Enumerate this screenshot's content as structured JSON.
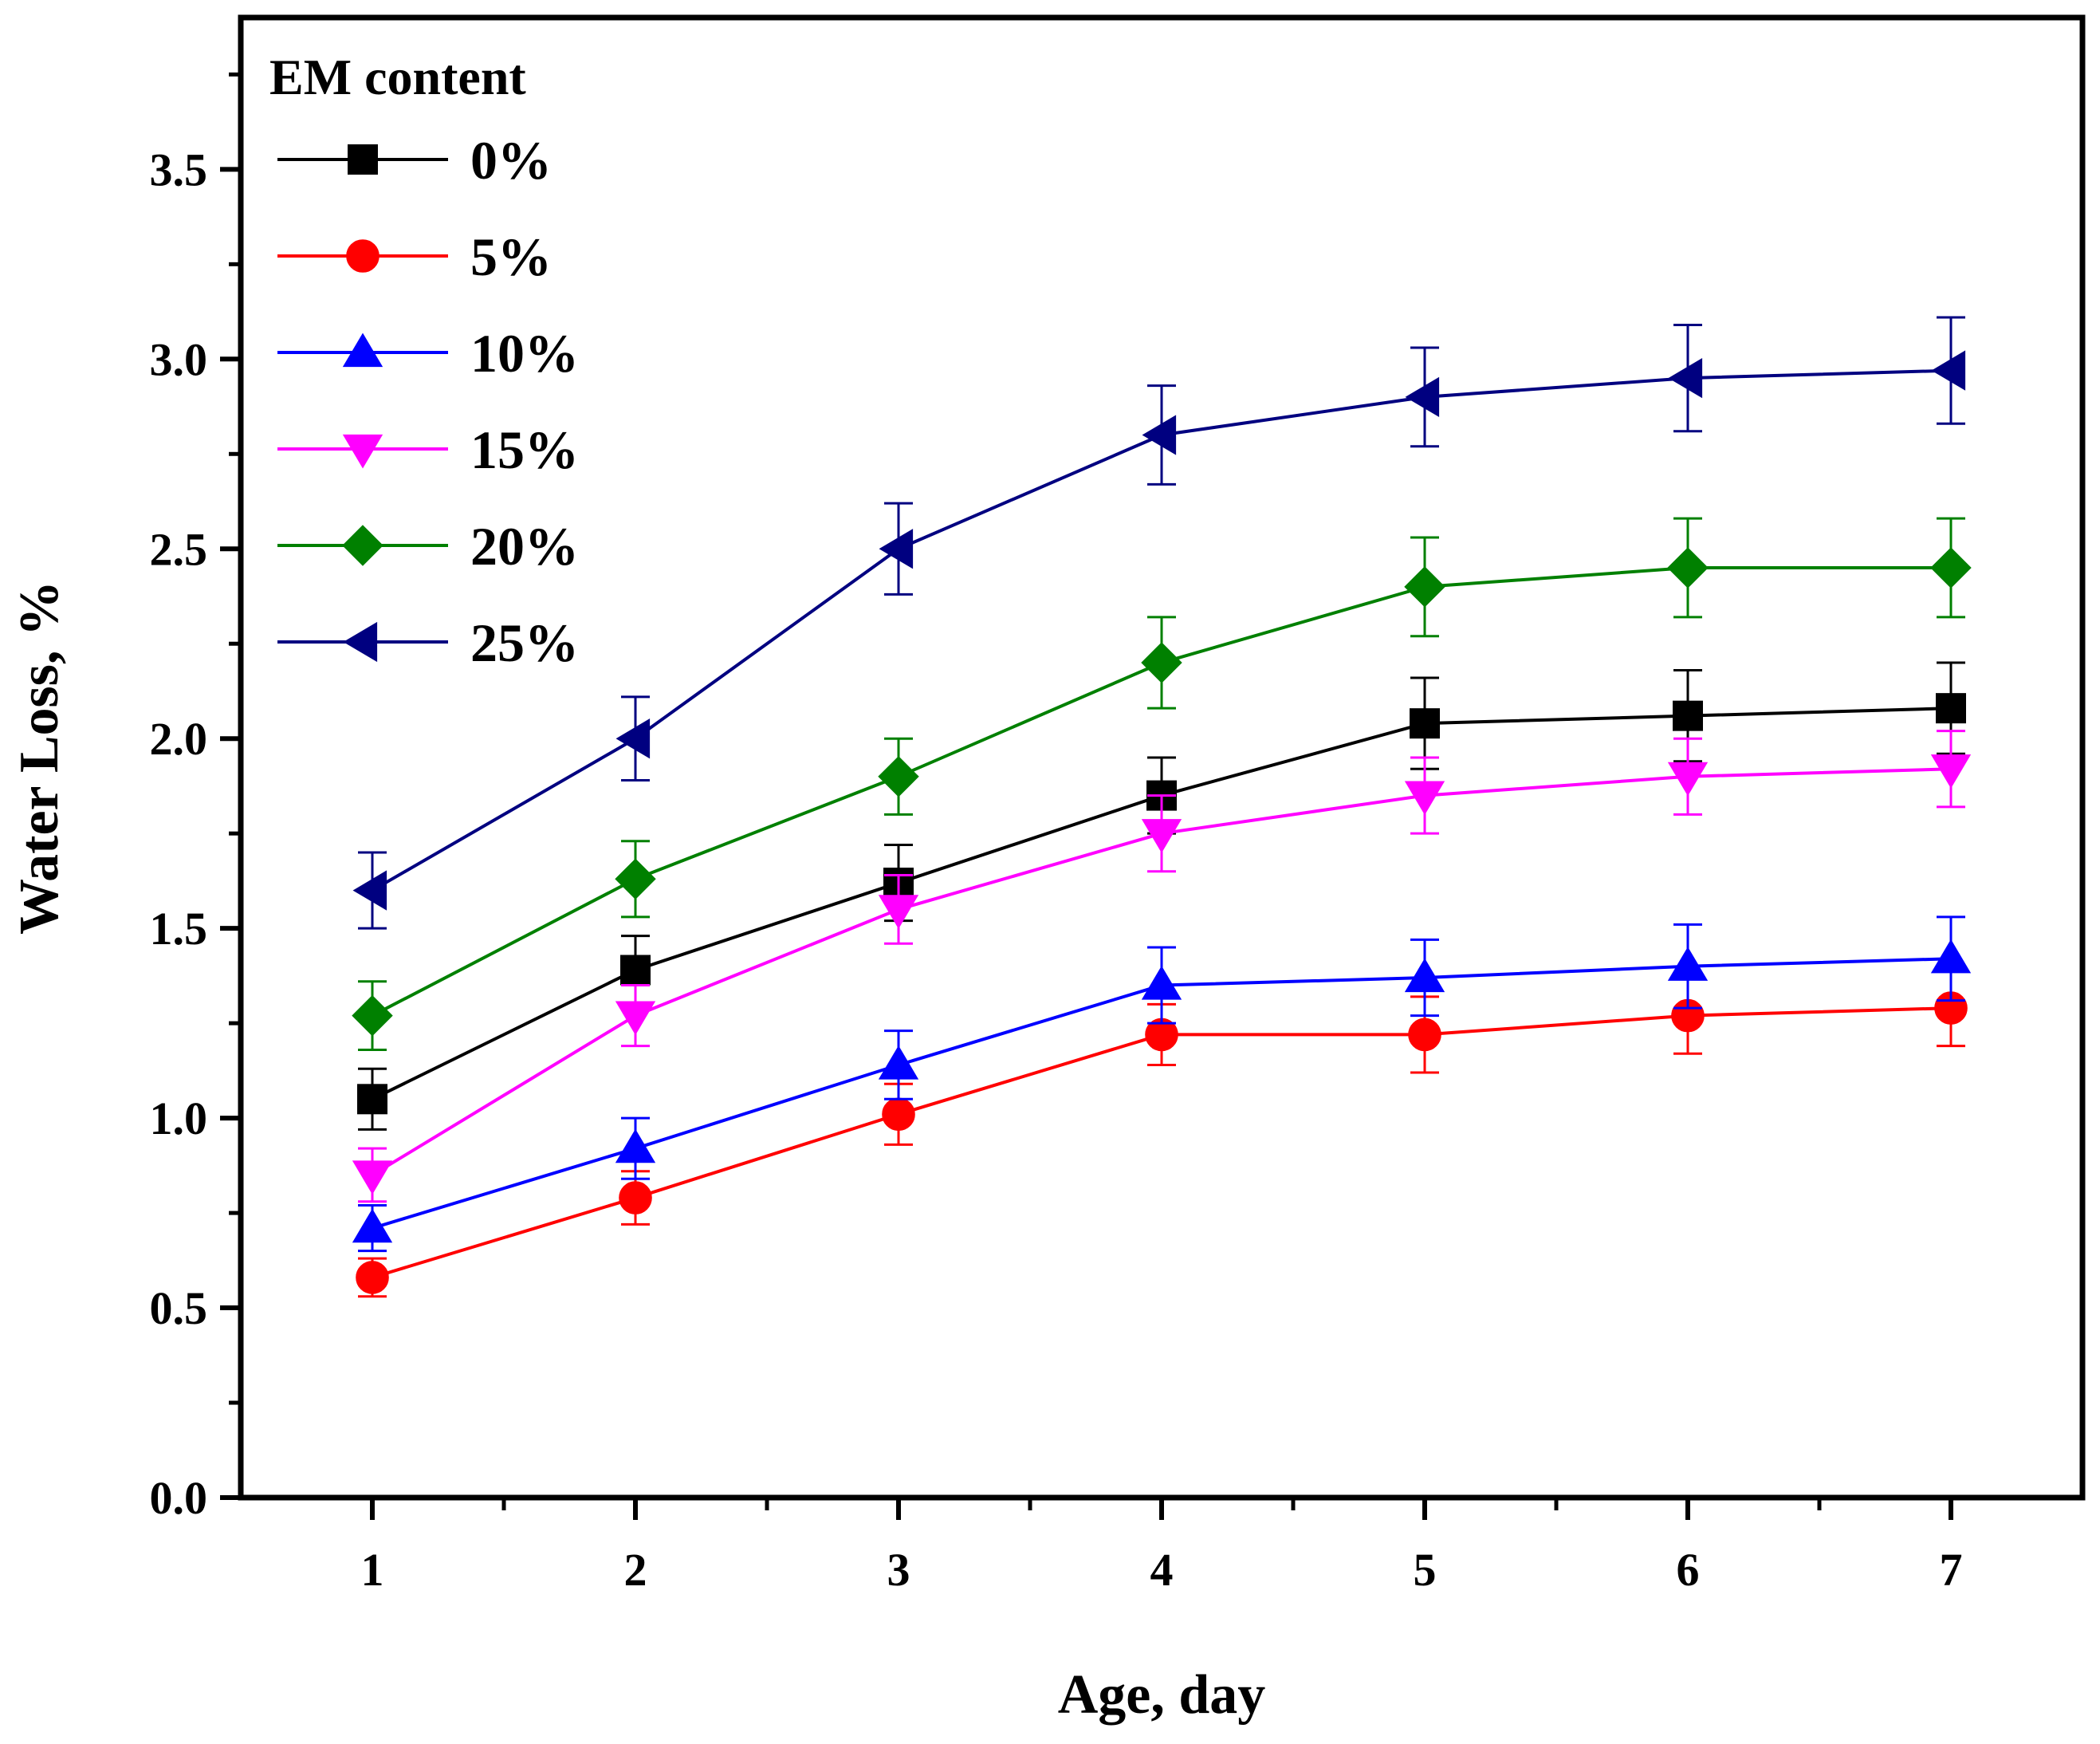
{
  "chart_data": {
    "type": "line",
    "title": "",
    "xlabel": "Age, day",
    "ylabel": "Water Loss, %",
    "x": [
      1,
      2,
      3,
      4,
      5,
      6,
      7
    ],
    "xlim": [
      0.5,
      7.5
    ],
    "ylim": [
      0.0,
      3.9
    ],
    "xticks": [
      "1",
      "2",
      "3",
      "4",
      "5",
      "6",
      "7"
    ],
    "yticks": [
      "0.0",
      "0.5",
      "1.0",
      "1.5",
      "2.0",
      "2.5",
      "3.0",
      "3.5"
    ],
    "legend_title": "EM content",
    "legend_position": "top-left",
    "series": [
      {
        "name": "0%",
        "color": "#000000",
        "marker": "square",
        "values": [
          1.05,
          1.39,
          1.62,
          1.85,
          2.04,
          2.06,
          2.08
        ],
        "errors": [
          0.08,
          0.09,
          0.1,
          0.1,
          0.12,
          0.12,
          0.12
        ]
      },
      {
        "name": "5%",
        "color": "#ff0000",
        "marker": "circle",
        "values": [
          0.58,
          0.79,
          1.01,
          1.22,
          1.22,
          1.27,
          1.29
        ],
        "errors": [
          0.05,
          0.07,
          0.08,
          0.08,
          0.1,
          0.1,
          0.1
        ]
      },
      {
        "name": "10%",
        "color": "#0000ff",
        "marker": "triangle-up",
        "values": [
          0.71,
          0.92,
          1.14,
          1.35,
          1.37,
          1.4,
          1.42
        ],
        "errors": [
          0.06,
          0.08,
          0.09,
          0.1,
          0.1,
          0.11,
          0.11
        ]
      },
      {
        "name": "15%",
        "color": "#ff00ff",
        "marker": "triangle-down",
        "values": [
          0.85,
          1.27,
          1.55,
          1.75,
          1.85,
          1.9,
          1.92
        ],
        "errors": [
          0.07,
          0.08,
          0.09,
          0.1,
          0.1,
          0.1,
          0.1
        ]
      },
      {
        "name": "20%",
        "color": "#008000",
        "marker": "diamond",
        "values": [
          1.27,
          1.63,
          1.9,
          2.2,
          2.4,
          2.45,
          2.45
        ],
        "errors": [
          0.09,
          0.1,
          0.1,
          0.12,
          0.13,
          0.13,
          0.13
        ]
      },
      {
        "name": "25%",
        "color": "#000080",
        "marker": "triangle-left",
        "values": [
          1.6,
          2.0,
          2.5,
          2.8,
          2.9,
          2.95,
          2.97
        ],
        "errors": [
          0.1,
          0.11,
          0.12,
          0.13,
          0.13,
          0.14,
          0.14
        ]
      }
    ]
  }
}
